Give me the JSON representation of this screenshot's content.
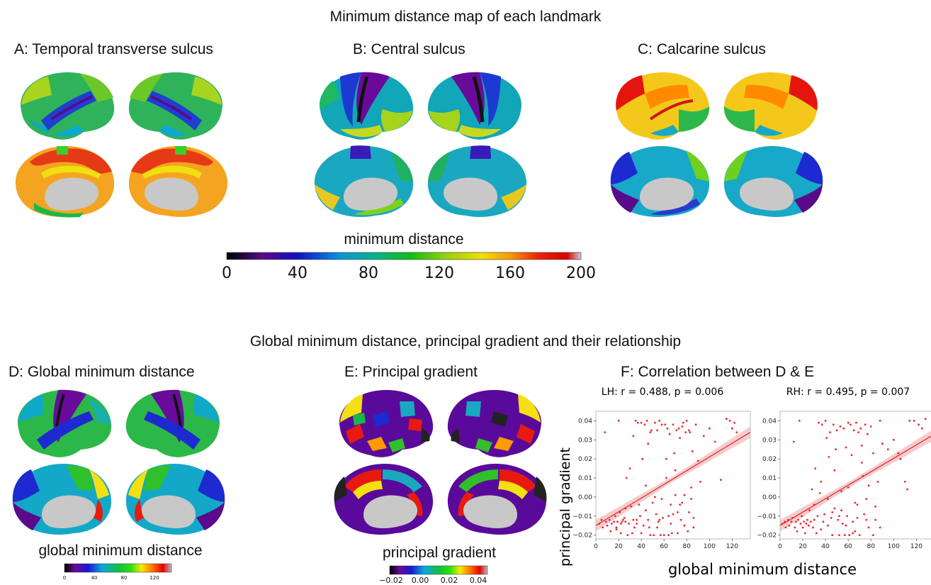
{
  "titles": {
    "top": "Minimum distance map of each landmark",
    "bottom": "Global minimum distance, principal gradient and their relationship"
  },
  "panels": {
    "A": "A: Temporal transverse sulcus",
    "B": "B: Central sulcus",
    "C": "C: Calcarine sulcus",
    "D": "D: Global minimum distance",
    "E": "E: Principal gradient",
    "F": "F: Correlation between D & E"
  },
  "colorbars": {
    "main": {
      "label": "minimum distance",
      "ticks": [
        "0",
        "40",
        "80",
        "120",
        "160",
        "200"
      ]
    },
    "global": {
      "label": "global minimum distance",
      "ticks": [
        "0",
        "40",
        "80",
        "120"
      ]
    },
    "gradient": {
      "label": "principal gradient",
      "ticks": [
        "−0.02",
        "0.00",
        "0.02",
        "0.04"
      ]
    }
  },
  "colors": {
    "point": "#e8262a",
    "line": "#d12a2a",
    "band": "#f6b9bb",
    "medial_wall": "#c8c8c8"
  },
  "chart_data": [
    {
      "type": "scatter",
      "title": "LH: r = 0.488, p = 0.006",
      "xlabel": "global minimum distance",
      "ylabel": "principal gradient",
      "xlim": [
        0,
        136
      ],
      "ylim": [
        -0.022,
        0.045
      ],
      "xticks": [
        "0",
        "20",
        "40",
        "60",
        "80",
        "100",
        "120"
      ],
      "yticks": [
        "−0.02",
        "−0.01",
        "0.00",
        "0.01",
        "0.02",
        "0.03",
        "0.04"
      ],
      "fit": {
        "x": [
          0,
          136
        ],
        "y": [
          -0.015,
          0.034
        ]
      },
      "points": [
        [
          3,
          -0.014
        ],
        [
          5,
          -0.012
        ],
        [
          6,
          -0.016
        ],
        [
          8,
          0.034
        ],
        [
          9,
          -0.013
        ],
        [
          10,
          -0.015
        ],
        [
          12,
          -0.012
        ],
        [
          13,
          -0.018
        ],
        [
          14,
          -0.014
        ],
        [
          16,
          -0.013
        ],
        [
          17,
          -0.01
        ],
        [
          18,
          -0.016
        ],
        [
          19,
          -0.013
        ],
        [
          20,
          0.04
        ],
        [
          21,
          -0.008
        ],
        [
          22,
          -0.014
        ],
        [
          23,
          -0.013
        ],
        [
          24,
          -0.012
        ],
        [
          25,
          -0.011
        ],
        [
          26,
          -0.013
        ],
        [
          27,
          0.01
        ],
        [
          28,
          -0.02
        ],
        [
          29,
          -0.014
        ],
        [
          30,
          0.015
        ],
        [
          31,
          -0.005
        ],
        [
          32,
          -0.019
        ],
        [
          33,
          -0.012
        ],
        [
          34,
          -0.016
        ],
        [
          35,
          0.04
        ],
        [
          36,
          -0.012
        ],
        [
          37,
          0.039
        ],
        [
          38,
          -0.004
        ],
        [
          39,
          -0.01
        ],
        [
          40,
          0.039
        ],
        [
          41,
          0.02
        ],
        [
          42,
          -0.015
        ],
        [
          43,
          0.038
        ],
        [
          44,
          -0.007
        ],
        [
          45,
          0.04
        ],
        [
          46,
          0.028
        ],
        [
          47,
          -0.016
        ],
        [
          48,
          0.034
        ],
        [
          49,
          0.035
        ],
        [
          50,
          -0.003
        ],
        [
          51,
          -0.02
        ],
        [
          52,
          0.039
        ],
        [
          53,
          -0.009
        ],
        [
          54,
          0.035
        ],
        [
          55,
          -0.013
        ],
        [
          56,
          0.04
        ],
        [
          57,
          -0.02
        ],
        [
          58,
          0.038
        ],
        [
          59,
          -0.011
        ],
        [
          60,
          -0.02
        ],
        [
          61,
          0.038
        ],
        [
          62,
          0.02
        ],
        [
          63,
          0.036
        ],
        [
          64,
          -0.02
        ],
        [
          65,
          0.033
        ],
        [
          66,
          -0.014
        ],
        [
          67,
          -0.019
        ],
        [
          68,
          0.038
        ],
        [
          69,
          0.023
        ],
        [
          70,
          0.001
        ],
        [
          71,
          0.035
        ],
        [
          72,
          -0.019
        ],
        [
          73,
          0.036
        ],
        [
          74,
          0.031
        ],
        [
          75,
          -0.012
        ],
        [
          76,
          0.037
        ],
        [
          77,
          0.039
        ],
        [
          78,
          -0.015
        ],
        [
          79,
          0.034
        ],
        [
          80,
          0.04
        ],
        [
          81,
          -0.018
        ],
        [
          82,
          0.035
        ],
        [
          83,
          0.034
        ],
        [
          84,
          -0.001
        ],
        [
          85,
          0.024
        ],
        [
          86,
          -0.016
        ],
        [
          88,
          0.038
        ],
        [
          90,
          0.019
        ],
        [
          92,
          0.008
        ],
        [
          95,
          0.032
        ],
        [
          100,
          0.036
        ],
        [
          105,
          0.029
        ],
        [
          110,
          0.009
        ],
        [
          115,
          0.041
        ],
        [
          118,
          0.04
        ],
        [
          120,
          0.036
        ],
        [
          122,
          0.039
        ],
        [
          124,
          0.034
        ],
        [
          26,
          -0.006
        ],
        [
          33,
          0.032
        ],
        [
          44,
          0.006
        ],
        [
          52,
          0.0
        ],
        [
          58,
          -0.001
        ],
        [
          62,
          0.01
        ],
        [
          66,
          -0.004
        ],
        [
          70,
          0.014
        ],
        [
          74,
          -0.004
        ],
        [
          78,
          0.001
        ],
        [
          82,
          -0.008
        ],
        [
          86,
          -0.011
        ],
        [
          36,
          -0.014
        ],
        [
          46,
          -0.012
        ],
        [
          54,
          -0.016
        ],
        [
          64,
          -0.01
        ],
        [
          72,
          -0.008
        ],
        [
          18,
          -0.017
        ],
        [
          22,
          -0.019
        ],
        [
          40,
          -0.019
        ],
        [
          48,
          -0.02
        ],
        [
          56,
          -0.012
        ],
        [
          68,
          -0.009
        ],
        [
          76,
          -0.003
        ],
        [
          84,
          0.005
        ]
      ]
    },
    {
      "type": "scatter",
      "title": "RH: r = 0.495, p = 0.007",
      "xlabel": "global minimum distance",
      "ylabel": "",
      "xlim": [
        0,
        136
      ],
      "ylim": [
        -0.022,
        0.045
      ],
      "xticks": [
        "0",
        "20",
        "40",
        "60",
        "80",
        "100",
        "120"
      ],
      "yticks": [
        "−0.02",
        "−0.01",
        "0.00",
        "0.01",
        "0.02",
        "0.03",
        "0.04"
      ],
      "fit": {
        "x": [
          0,
          136
        ],
        "y": [
          -0.015,
          0.033
        ]
      },
      "points": [
        [
          2,
          -0.014
        ],
        [
          4,
          -0.013
        ],
        [
          5,
          -0.016
        ],
        [
          7,
          -0.012
        ],
        [
          8,
          -0.015
        ],
        [
          10,
          -0.013
        ],
        [
          11,
          -0.011
        ],
        [
          12,
          0.029
        ],
        [
          13,
          -0.016
        ],
        [
          14,
          -0.013
        ],
        [
          15,
          -0.018
        ],
        [
          16,
          -0.012
        ],
        [
          17,
          0.04
        ],
        [
          18,
          -0.014
        ],
        [
          19,
          -0.01
        ],
        [
          20,
          -0.016
        ],
        [
          21,
          -0.013
        ],
        [
          22,
          -0.019
        ],
        [
          23,
          -0.014
        ],
        [
          24,
          -0.012
        ],
        [
          25,
          -0.015
        ],
        [
          26,
          -0.007
        ],
        [
          27,
          -0.013
        ],
        [
          28,
          0.004
        ],
        [
          29,
          -0.016
        ],
        [
          30,
          -0.012
        ],
        [
          31,
          0.015
        ],
        [
          32,
          -0.019
        ],
        [
          33,
          -0.01
        ],
        [
          34,
          0.039
        ],
        [
          35,
          0.002
        ],
        [
          36,
          -0.017
        ],
        [
          37,
          0.038
        ],
        [
          38,
          -0.013
        ],
        [
          39,
          -0.009
        ],
        [
          40,
          0.04
        ],
        [
          41,
          0.031
        ],
        [
          42,
          -0.015
        ],
        [
          43,
          0.021
        ],
        [
          44,
          0.034
        ],
        [
          45,
          -0.011
        ],
        [
          46,
          -0.02
        ],
        [
          47,
          0.038
        ],
        [
          48,
          -0.006
        ],
        [
          49,
          0.025
        ],
        [
          50,
          0.035
        ],
        [
          51,
          -0.012
        ],
        [
          52,
          -0.02
        ],
        [
          53,
          0.037
        ],
        [
          54,
          0.003
        ],
        [
          55,
          -0.014
        ],
        [
          56,
          0.036
        ],
        [
          57,
          -0.02
        ],
        [
          58,
          0.026
        ],
        [
          59,
          -0.01
        ],
        [
          60,
          0.039
        ],
        [
          61,
          -0.02
        ],
        [
          62,
          0.038
        ],
        [
          63,
          0.022
        ],
        [
          64,
          -0.013
        ],
        [
          65,
          0.035
        ],
        [
          66,
          -0.018
        ],
        [
          67,
          0.039
        ],
        [
          68,
          -0.004
        ],
        [
          69,
          0.034
        ],
        [
          70,
          -0.02
        ],
        [
          71,
          0.036
        ],
        [
          72,
          0.027
        ],
        [
          73,
          0.011
        ],
        [
          74,
          -0.009
        ],
        [
          75,
          0.038
        ],
        [
          76,
          -0.001
        ],
        [
          77,
          0.033
        ],
        [
          78,
          -0.016
        ],
        [
          80,
          0.037
        ],
        [
          82,
          0.023
        ],
        [
          84,
          -0.012
        ],
        [
          86,
          0.008
        ],
        [
          88,
          0.04
        ],
        [
          90,
          0.028
        ],
        [
          95,
          0.025
        ],
        [
          100,
          0.03
        ],
        [
          104,
          0.023
        ],
        [
          106,
          0.02
        ],
        [
          110,
          0.008
        ],
        [
          112,
          0.004
        ],
        [
          114,
          0.04
        ],
        [
          118,
          0.04
        ],
        [
          122,
          0.038
        ],
        [
          125,
          0.036
        ],
        [
          128,
          0.041
        ],
        [
          30,
          -0.004
        ],
        [
          36,
          0.008
        ],
        [
          42,
          -0.001
        ],
        [
          48,
          0.014
        ],
        [
          54,
          -0.007
        ],
        [
          60,
          0.005
        ],
        [
          66,
          -0.003
        ],
        [
          72,
          0.018
        ],
        [
          78,
          0.006
        ],
        [
          84,
          -0.005
        ],
        [
          88,
          -0.016
        ],
        [
          46,
          -0.008
        ],
        [
          52,
          -0.01
        ],
        [
          58,
          -0.015
        ],
        [
          64,
          -0.019
        ],
        [
          68,
          -0.011
        ],
        [
          76,
          -0.012
        ],
        [
          82,
          -0.02
        ]
      ]
    }
  ]
}
